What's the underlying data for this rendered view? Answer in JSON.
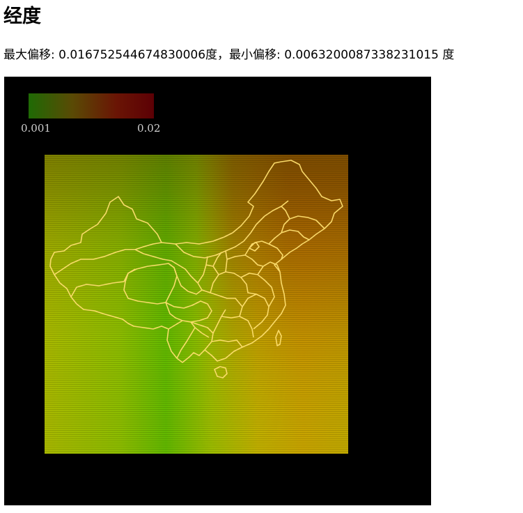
{
  "page": {
    "title": "经度",
    "max_offset_label": "最大偏移: ",
    "max_offset_value": "0.016752544674830006",
    "max_offset_unit": "度",
    "separator": "，",
    "min_offset_label": "最小偏移: ",
    "min_offset_value": "0.006320008733823101",
    "min_offset_unit": "5 度"
  },
  "legend": {
    "min_label": "0.001",
    "max_label": "0.02",
    "colors": [
      "#1f6a05",
      "#5a4a05",
      "#6a1505",
      "#5c0005"
    ]
  },
  "heatmap": {
    "colors": {
      "green": "#6ec000",
      "yellow": "#c8c800",
      "orange": "#b07000",
      "rust": "#a34a00"
    },
    "outline_color": "#ffe070"
  }
}
